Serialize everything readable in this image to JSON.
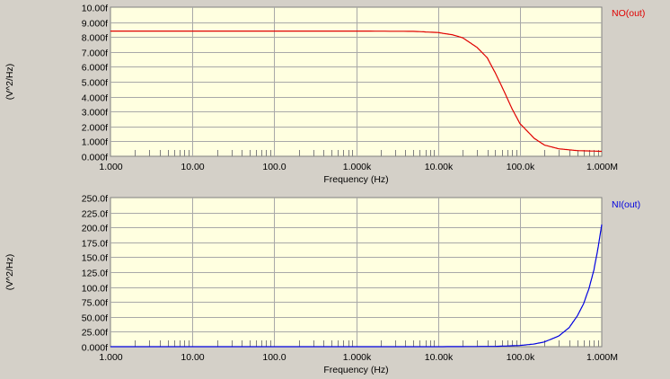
{
  "colors": {
    "background": "#d4d0c8",
    "plot_area": "#ffffe0",
    "grid": "#a8a8a8",
    "axis": "#808080",
    "series_top": "#e00000",
    "series_bottom": "#0000e0"
  },
  "chart_data": [
    {
      "type": "line",
      "xscale": "log",
      "xlim": [
        1,
        1000000
      ],
      "x_ticklabels": [
        "1.000",
        "10.00",
        "100.0",
        "1.000k",
        "10.00k",
        "100.0k",
        "1.000M"
      ],
      "ylim": [
        0,
        10
      ],
      "y_ticklabels": [
        "0.000f",
        "1.000f",
        "2.000f",
        "3.000f",
        "4.000f",
        "5.000f",
        "6.000f",
        "7.000f",
        "8.000f",
        "9.000f",
        "10.00f"
      ],
      "xlabel": "Frequency (Hz)",
      "ylabel": "(V^2/Hz)",
      "grid": true,
      "legend_position": "top-right",
      "series": [
        {
          "name": "NO(out)",
          "color": "#e00000",
          "x": [
            1,
            10,
            100,
            1000,
            5000,
            10000,
            15000,
            20000,
            30000,
            40000,
            50000,
            60000,
            70000,
            80000,
            100000,
            150000,
            200000,
            300000,
            500000,
            1000000
          ],
          "y": [
            8.4,
            8.4,
            8.4,
            8.4,
            8.38,
            8.3,
            8.15,
            7.95,
            7.3,
            6.6,
            5.6,
            4.7,
            3.9,
            3.2,
            2.2,
            1.2,
            0.75,
            0.5,
            0.38,
            0.33
          ]
        }
      ]
    },
    {
      "type": "line",
      "xscale": "log",
      "xlim": [
        1,
        1000000
      ],
      "x_ticklabels": [
        "1.000",
        "10.00",
        "100.0",
        "1.000k",
        "10.00k",
        "100.0k",
        "1.000M"
      ],
      "ylim": [
        0,
        250
      ],
      "y_ticklabels": [
        "0.000f",
        "25.00f",
        "50.00f",
        "75.00f",
        "100.0f",
        "125.0f",
        "150.0f",
        "175.0f",
        "200.0f",
        "225.0f",
        "250.0f"
      ],
      "xlabel": "Frequency (Hz)",
      "ylabel": "(V^2/Hz)",
      "grid": true,
      "legend_position": "top-right",
      "series": [
        {
          "name": "NI(out)",
          "color": "#0000e0",
          "x": [
            1,
            10,
            100,
            1000,
            10000,
            50000,
            100000,
            150000,
            200000,
            300000,
            400000,
            500000,
            600000,
            700000,
            800000,
            900000,
            1000000
          ],
          "y": [
            0,
            0,
            0,
            0,
            0.02,
            0.5,
            2,
            4.5,
            8,
            18,
            32,
            51,
            72,
            98,
            128,
            165,
            205
          ]
        }
      ]
    }
  ]
}
